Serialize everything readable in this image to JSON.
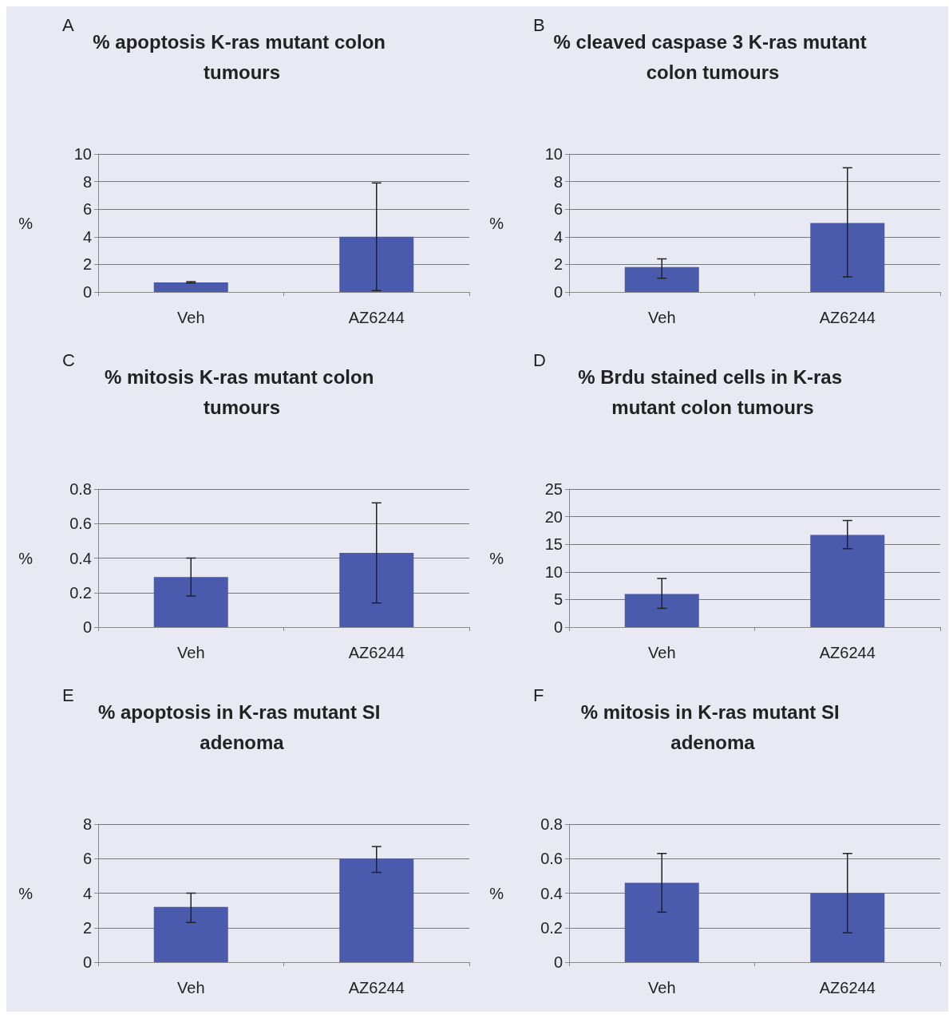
{
  "chart_data": [
    {
      "type": "bar",
      "annotations": [
        "A"
      ],
      "title": "% apoptosis K-ras mutant colon tumours",
      "ylabel": "%",
      "categories": [
        "Veh",
        "AZ6244"
      ],
      "values": [
        0.7,
        4.0
      ],
      "errors": [
        [
          0.65,
          0.75
        ],
        [
          0.1,
          7.9
        ]
      ],
      "color": "#4a5aad",
      "ylim": [
        0,
        10
      ],
      "yticks": [
        0,
        2,
        4,
        6,
        8,
        10
      ],
      "grid": "y"
    },
    {
      "type": "bar",
      "annotations": [
        "B"
      ],
      "title": "% cleaved caspase 3 K-ras mutant colon tumours",
      "ylabel": "%",
      "categories": [
        "Veh",
        "AZ6244"
      ],
      "values": [
        1.8,
        5.0
      ],
      "errors": [
        [
          1.0,
          2.4
        ],
        [
          1.1,
          9.0
        ]
      ],
      "color": "#4a5aad",
      "ylim": [
        0,
        10
      ],
      "yticks": [
        0,
        2,
        4,
        6,
        8,
        10
      ],
      "grid": "y"
    },
    {
      "type": "bar",
      "annotations": [
        "C"
      ],
      "title": "% mitosis K-ras mutant colon tumours",
      "ylabel": "%",
      "categories": [
        "Veh",
        "AZ6244"
      ],
      "values": [
        0.29,
        0.43
      ],
      "errors": [
        [
          0.18,
          0.4
        ],
        [
          0.14,
          0.72
        ]
      ],
      "color": "#4a5aad",
      "ylim": [
        0,
        0.8
      ],
      "yticks": [
        0,
        0.2,
        0.4,
        0.6,
        0.8
      ],
      "grid": "y"
    },
    {
      "type": "bar",
      "annotations": [
        "D"
      ],
      "title": "% Brdu stained cells in K-ras mutant colon tumours",
      "ylabel": "%",
      "categories": [
        "Veh",
        "AZ6244"
      ],
      "values": [
        6,
        16.7
      ],
      "errors": [
        [
          3.4,
          8.8
        ],
        [
          14.2,
          19.3
        ]
      ],
      "color": "#4a5aad",
      "ylim": [
        0,
        25
      ],
      "yticks": [
        0,
        5,
        10,
        15,
        20,
        25
      ],
      "grid": "y"
    },
    {
      "type": "bar",
      "annotations": [
        "E"
      ],
      "title": "% apoptosis in K-ras mutant SI adenoma",
      "ylabel": "%",
      "categories": [
        "Veh",
        "AZ6244"
      ],
      "values": [
        3.2,
        6.0
      ],
      "errors": [
        [
          2.3,
          4.0
        ],
        [
          5.2,
          6.7
        ]
      ],
      "color": "#4a5aad",
      "ylim": [
        0,
        8
      ],
      "yticks": [
        0,
        2,
        4,
        6,
        8
      ],
      "grid": "y"
    },
    {
      "type": "bar",
      "annotations": [
        "F"
      ],
      "title": "% mitosis in K-ras mutant SI adenoma",
      "ylabel": "%",
      "categories": [
        "Veh",
        "AZ6244"
      ],
      "values": [
        0.46,
        0.4
      ],
      "errors": [
        [
          0.29,
          0.63
        ],
        [
          0.17,
          0.63
        ]
      ],
      "color": "#4a5aad",
      "ylim": [
        0,
        0.8
      ],
      "yticks": [
        0,
        0.2,
        0.4,
        0.6,
        0.8
      ],
      "grid": "y"
    }
  ]
}
